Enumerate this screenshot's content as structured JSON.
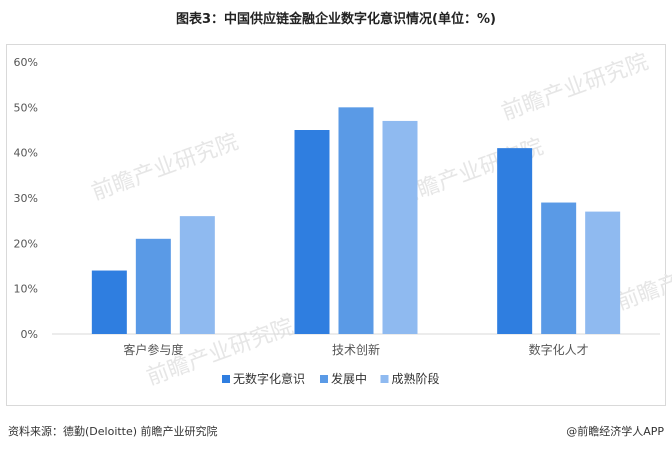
{
  "page": {
    "title": "图表3：中国供应链金融企业数字化意识情况(单位：%)",
    "source": "资料来源：德勤(Deloitte) 前瞻产业研究院",
    "credit": "@前瞻经济学人APP",
    "watermark": "前瞻产业研究院"
  },
  "colors": {
    "series1": "#2f7ee0",
    "series2": "#5a9ae6",
    "series3": "#8fbaf0",
    "grid": "#d9d9d9",
    "axis_text": "#555555"
  },
  "chart_data": {
    "type": "bar",
    "categories": [
      "客户参与度",
      "技术创新",
      "数字化人才"
    ],
    "series": [
      {
        "name": "无数字化意识",
        "values": [
          14,
          45,
          41
        ]
      },
      {
        "name": "发展中",
        "values": [
          21,
          50,
          29
        ]
      },
      {
        "name": "成熟阶段",
        "values": [
          26,
          47,
          27
        ]
      }
    ],
    "yticks": [
      "0%",
      "10%",
      "20%",
      "30%",
      "40%",
      "50%",
      "60%"
    ],
    "ylim": [
      0,
      60
    ],
    "grid": false,
    "legend_position": "bottom-center"
  }
}
